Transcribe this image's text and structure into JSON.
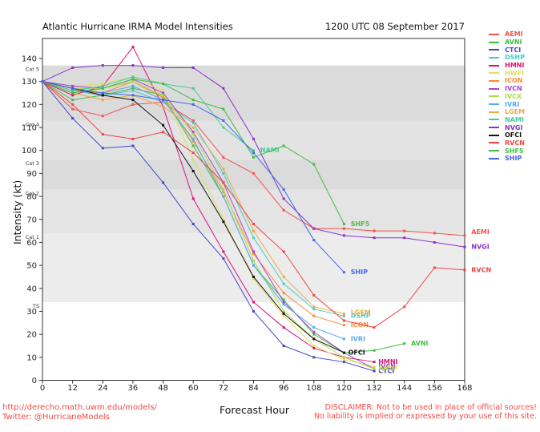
{
  "header": {
    "title": "Atlantic Hurricane IRMA Model Intensities",
    "datetime": "1200 UTC 08 September 2017"
  },
  "footer": {
    "url": "http://derecho.math.uwm.edu/models/",
    "twitter": "Twitter: @HurricaneModels",
    "disclaimer_line1": "DISCLAIMER: Not to be used in place of official sources!",
    "disclaimer_line2": "No liability is implied or expressed by your use of this site.",
    "accent_color": "#f74a44"
  },
  "chart_data": {
    "type": "line",
    "title": "Atlantic Hurricane IRMA Model Intensities",
    "subtitle": "1200 UTC 08 September 2017",
    "xlabel": "Forecast Hour",
    "ylabel": "Intensity (kt)",
    "x_axis": {
      "min": 0,
      "max": 168,
      "step": 12
    },
    "y_axis": {
      "min": 0,
      "max": 140,
      "step": 10,
      "plot_top_value": 148
    },
    "grid": false,
    "legend_position": "right-outside",
    "bands": [
      {
        "label": "TS",
        "from": 34,
        "to": 64,
        "color": "#ececec"
      },
      {
        "label": "Cat 1",
        "from": 64,
        "to": 83,
        "color": "#e4e4e4"
      },
      {
        "label": "Cat 2",
        "from": 83,
        "to": 96,
        "color": "#dbdbdb"
      },
      {
        "label": "Cat 3",
        "from": 96,
        "to": 113,
        "color": "#e3e3e3"
      },
      {
        "label": "Cat 4",
        "from": 113,
        "to": 137,
        "color": "#dbdbdb"
      },
      {
        "label": "Cat 5",
        "from": 137,
        "to": 148,
        "color": "#ffffff"
      }
    ],
    "hours": [
      0,
      12,
      24,
      36,
      48,
      60,
      72,
      84,
      96,
      108,
      120,
      132,
      144,
      156,
      168
    ],
    "series": [
      {
        "name": "AEMI",
        "color": "#f4524e",
        "values": [
          130,
          118,
          115,
          120,
          121,
          113,
          97,
          90,
          74,
          66,
          66,
          65,
          65,
          64,
          63
        ],
        "label_at": [
          170,
          64.5
        ]
      },
      {
        "name": "AVNI",
        "color": "#3fbf3f",
        "values": [
          130,
          122,
          124,
          127,
          124,
          102,
          80,
          50,
          35,
          20,
          12,
          13,
          16
        ],
        "label_at": [
          146,
          16
        ]
      },
      {
        "name": "CTCI",
        "color": "#4444cc",
        "values": [
          130,
          114,
          101,
          102,
          86,
          68,
          53,
          30,
          15,
          10,
          8,
          4
        ],
        "label_at": [
          133,
          4
        ]
      },
      {
        "name": "DSHP",
        "color": "#44cccc",
        "values": [
          130,
          126,
          124,
          126,
          121,
          112,
          90,
          62,
          42,
          31,
          28
        ],
        "label_at": [
          122,
          28
        ]
      },
      {
        "name": "HMNI",
        "color": "#dd1177",
        "values": [
          130,
          124,
          128,
          145,
          119,
          79,
          56,
          34,
          23,
          14,
          10,
          8
        ],
        "label_at": [
          133,
          8
        ]
      },
      {
        "name": "HWFI",
        "color": "#dddd66",
        "values": [
          130,
          128,
          129,
          132,
          126,
          96,
          70,
          44,
          28,
          15,
          9,
          6
        ],
        "label_at": [
          133,
          5.5
        ]
      },
      {
        "name": "ICON",
        "color": "#ff8833",
        "values": [
          130,
          126,
          125,
          130,
          123,
          104,
          82,
          55,
          38,
          28,
          24
        ],
        "label_at": [
          122,
          24
        ]
      },
      {
        "name": "IVCN",
        "color": "#aa44cc",
        "values": [
          130,
          128,
          127,
          131,
          125,
          108,
          86,
          56,
          34,
          21,
          12,
          5
        ],
        "label_at": [
          133,
          6
        ]
      },
      {
        "name": "IVCX",
        "color": "#aadd44",
        "values": [
          130,
          127,
          127,
          130,
          124,
          107,
          83,
          52,
          30,
          18,
          10,
          5
        ],
        "label_at": [
          133,
          5
        ]
      },
      {
        "name": "IVRI",
        "color": "#55aaee",
        "values": [
          130,
          127,
          125,
          128,
          122,
          105,
          80,
          50,
          33,
          23,
          18
        ],
        "label_at": [
          122,
          18
        ]
      },
      {
        "name": "LGEM",
        "color": "#eeaa44",
        "values": [
          130,
          125,
          122,
          124,
          119,
          110,
          92,
          65,
          45,
          32,
          29
        ],
        "label_at": [
          122,
          29.5
        ]
      },
      {
        "name": "NAMI",
        "color": "#44cc99",
        "values": [
          130,
          126,
          128,
          132,
          129,
          127,
          110,
          100
        ],
        "label_at": [
          86,
          100
        ]
      },
      {
        "name": "NVGI",
        "color": "#8833cc",
        "values": [
          130,
          136,
          137,
          137,
          136,
          136,
          127,
          105,
          79,
          66,
          63,
          62,
          62,
          60,
          58
        ],
        "label_at": [
          170,
          58
        ]
      },
      {
        "name": "OFCI",
        "color": "#111111",
        "values": [
          130,
          127,
          124,
          122,
          111,
          91,
          69,
          45,
          29,
          18,
          12
        ],
        "label_at": [
          121,
          12
        ]
      },
      {
        "name": "RVCN",
        "color": "#ee4444",
        "values": [
          130,
          120,
          107,
          105,
          108,
          99,
          86,
          68,
          56,
          37,
          26,
          23,
          32,
          49,
          48
        ],
        "label_at": [
          170,
          48
        ]
      },
      {
        "name": "SHF5",
        "color": "#44bb44",
        "values": [
          130,
          125,
          127,
          131,
          129,
          122,
          118,
          97,
          102,
          94,
          68
        ],
        "label_at": [
          122,
          68
        ]
      },
      {
        "name": "SHIP",
        "color": "#4466ee",
        "values": [
          130,
          127,
          125,
          124,
          122,
          120,
          113,
          99,
          83,
          61,
          47
        ],
        "label_at": [
          122,
          47
        ]
      }
    ]
  }
}
